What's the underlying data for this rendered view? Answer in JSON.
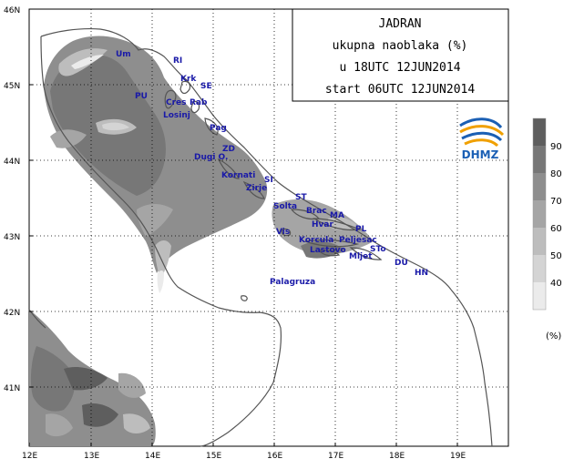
{
  "title_box": {
    "line1": "JADRAN",
    "line2": "ukupna naoblaka (%)",
    "line3": "u 18UTC 12JUN2014",
    "line4": "start 06UTC 12JUN2014"
  },
  "logo": {
    "text": "DHMZ"
  },
  "axes": {
    "lat_ticks": [
      "46N",
      "45N",
      "44N",
      "43N",
      "42N",
      "41N"
    ],
    "lon_ticks": [
      "12E",
      "13E",
      "14E",
      "15E",
      "16E",
      "17E",
      "18E",
      "19E"
    ]
  },
  "legend": {
    "levels": [
      "90",
      "80",
      "70",
      "60",
      "50",
      "40"
    ],
    "unit": "(%)",
    "colors": [
      "#5e5e5e",
      "#777777",
      "#8e8e8e",
      "#a5a5a5",
      "#bdbdbd",
      "#d4d4d4",
      "#ebebeb"
    ]
  },
  "places": [
    {
      "name": "Um"
    },
    {
      "name": "RI"
    },
    {
      "name": "Krk"
    },
    {
      "name": "SE"
    },
    {
      "name": "PU"
    },
    {
      "name": "Cres"
    },
    {
      "name": "Rab"
    },
    {
      "name": "Losinj"
    },
    {
      "name": "Pag"
    },
    {
      "name": "ZD"
    },
    {
      "name": "Dugi O."
    },
    {
      "name": "Kornati"
    },
    {
      "name": "SI"
    },
    {
      "name": "Zirje"
    },
    {
      "name": "ST"
    },
    {
      "name": "Solta"
    },
    {
      "name": "Brac"
    },
    {
      "name": "MA"
    },
    {
      "name": "Vis"
    },
    {
      "name": "Hvar"
    },
    {
      "name": "PL"
    },
    {
      "name": "Korcula"
    },
    {
      "name": "Peljesac"
    },
    {
      "name": "Lastovo"
    },
    {
      "name": "STo"
    },
    {
      "name": "Mljet"
    },
    {
      "name": "DU"
    },
    {
      "name": "HN"
    },
    {
      "name": "Palagruza"
    }
  ]
}
